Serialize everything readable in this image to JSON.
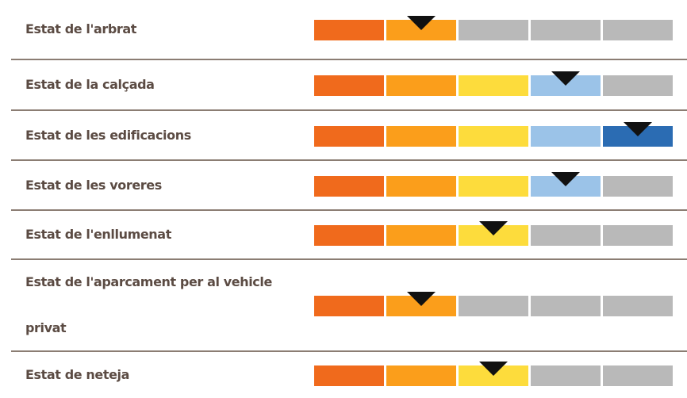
{
  "scale": {
    "max": 5,
    "colors": [
      "#f06a1c",
      "#fb9e1b",
      "#fddc3c",
      "#9bc3e8",
      "#2b6cb3"
    ],
    "inactive_color": "#b9b9b9"
  },
  "rows": [
    {
      "label": "Estat de l'arbrat",
      "rating": 2
    },
    {
      "label": "Estat de la calçada",
      "rating": 4
    },
    {
      "label": "Estat de les edificacions",
      "rating": 5
    },
    {
      "label": "Estat de les voreres",
      "rating": 4
    },
    {
      "label": "Estat de l'enllumenat",
      "rating": 3
    },
    {
      "label": "Estat de l'aparcament per al vehicle privat",
      "rating": 2
    },
    {
      "label": "Estat de neteja",
      "rating": 3
    }
  ]
}
